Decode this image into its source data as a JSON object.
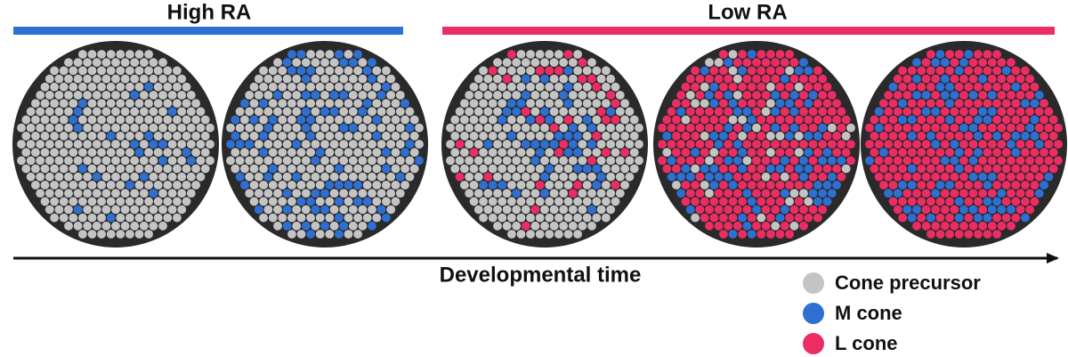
{
  "header": {
    "high": "High RA",
    "low": "Low RA"
  },
  "axis_label": "Developmental time",
  "legend": [
    "Cone precursor",
    "M cone",
    "L cone"
  ]
}
